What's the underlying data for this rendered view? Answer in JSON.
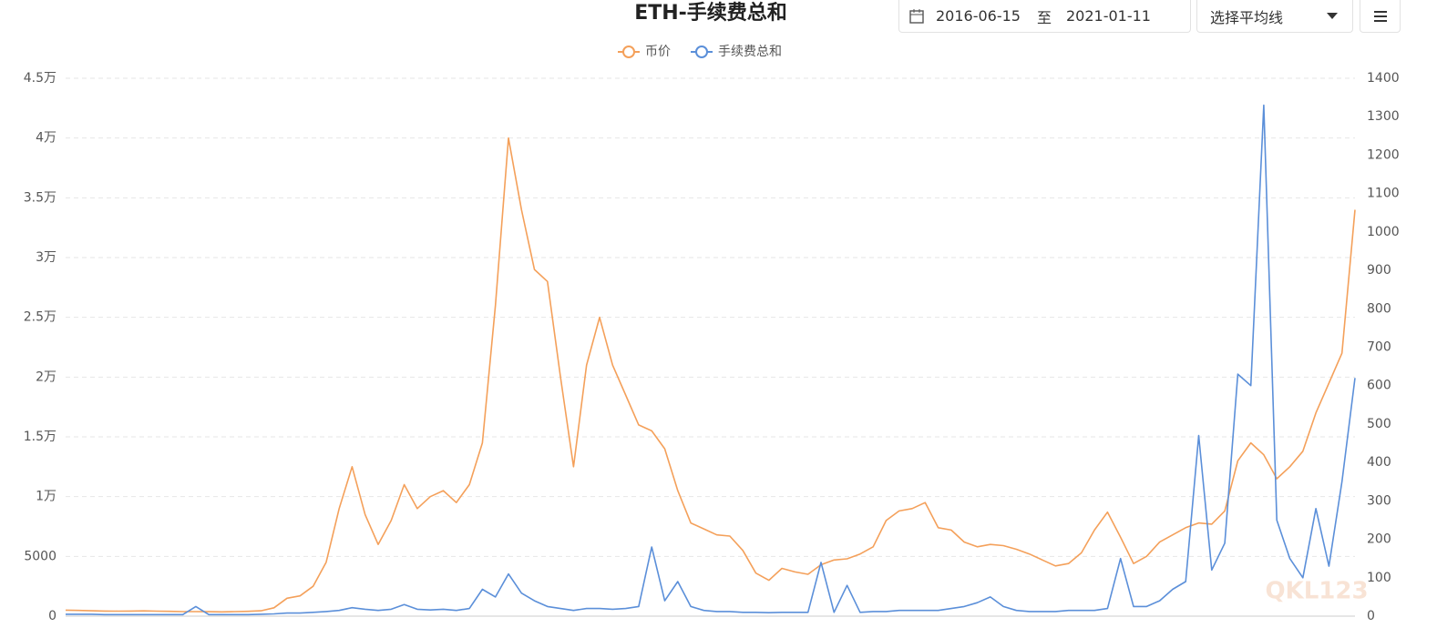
{
  "chart_data": {
    "type": "line",
    "title": "ETH-手续费总和",
    "controls": {
      "start": "2016-06-15",
      "separator": "至",
      "end": "2021-01-11",
      "ma_select": "选择平均线"
    },
    "watermark": "QKL123",
    "categories": [
      null,
      null,
      null,
      null,
      null,
      null,
      null,
      null,
      null,
      null,
      null,
      null,
      null,
      null,
      null,
      null,
      null,
      null,
      null,
      null,
      null,
      null,
      null,
      null,
      null,
      null,
      null,
      null,
      null,
      null,
      null,
      null,
      null,
      null,
      null,
      null,
      null,
      null,
      null,
      null,
      null,
      null,
      null,
      null,
      null,
      null,
      null,
      null,
      null,
      null,
      null,
      null,
      null,
      null,
      null,
      null,
      null,
      null,
      null,
      null,
      null,
      null,
      null,
      null,
      null,
      null,
      null,
      null,
      null,
      null,
      null,
      null,
      null,
      null,
      null,
      null,
      null,
      null,
      null,
      null,
      null,
      null,
      null,
      null,
      null,
      null,
      null,
      null,
      null,
      null,
      null,
      null,
      null,
      null,
      null,
      null,
      null,
      null,
      null,
      null
    ],
    "series": [
      {
        "name": "币价",
        "color": "#f4a05a",
        "values": [
          500,
          480,
          450,
          430,
          420,
          430,
          440,
          420,
          400,
          380,
          380,
          370,
          360,
          380,
          400,
          450,
          700,
          1500,
          1700,
          2500,
          4500,
          9000,
          12500,
          8500,
          6000,
          8000,
          11000,
          9000,
          10000,
          10500,
          9500,
          11000,
          14500,
          26000,
          40000,
          34000,
          29000,
          28000,
          20000,
          12500,
          21000,
          25000,
          21000,
          18500,
          16000,
          15500,
          14000,
          10500,
          7800,
          7300,
          6800,
          6700,
          5500,
          3600,
          3000,
          4000,
          3700,
          3500,
          4300,
          4700,
          4800,
          5200,
          5800,
          8000,
          8800,
          9000,
          9500,
          7400,
          7200,
          6200,
          5800,
          6000,
          5900,
          5600,
          5200,
          4700,
          4200,
          4400,
          5300,
          7200,
          8700,
          6600,
          4400,
          5000,
          6200,
          6800,
          7400,
          7800,
          7700,
          8800,
          13000,
          14500,
          13500,
          11500,
          12500,
          13800,
          17000,
          19500,
          22000,
          34000
        ]
      },
      {
        "name": "手续费总和",
        "color": "#5b8fd9",
        "axis": "y2",
        "values": [
          5,
          5,
          5,
          4,
          4,
          4,
          4,
          4,
          4,
          4,
          25,
          4,
          4,
          4,
          4,
          5,
          6,
          8,
          8,
          10,
          12,
          15,
          22,
          18,
          15,
          18,
          30,
          18,
          16,
          18,
          15,
          20,
          70,
          50,
          110,
          60,
          40,
          25,
          20,
          15,
          20,
          20,
          18,
          20,
          25,
          180,
          40,
          90,
          25,
          15,
          12,
          12,
          10,
          10,
          9,
          10,
          10,
          10,
          140,
          10,
          80,
          10,
          12,
          12,
          15,
          15,
          15,
          15,
          20,
          25,
          35,
          50,
          25,
          15,
          12,
          12,
          12,
          15,
          15,
          15,
          20,
          150,
          25,
          25,
          40,
          70,
          90,
          470,
          120,
          190,
          630,
          600,
          1330,
          250,
          150,
          100,
          280,
          130,
          350,
          620
        ]
      }
    ],
    "ylim": [
      0,
      45000
    ],
    "yticks": [
      0,
      5000,
      {
        "value": 10000,
        "label": "1万"
      },
      {
        "value": 15000,
        "label": "1.5万"
      },
      {
        "value": 20000,
        "label": "2万"
      },
      {
        "value": 25000,
        "label": "2.5万"
      },
      {
        "value": 30000,
        "label": "3万"
      },
      {
        "value": 35000,
        "label": "3.5万"
      },
      {
        "value": 40000,
        "label": "4万"
      },
      {
        "value": 45000,
        "label": "4.5万"
      }
    ],
    "y2lim": [
      0,
      1400
    ],
    "y2ticks": [
      0,
      100,
      200,
      300,
      400,
      500,
      600,
      700,
      800,
      900,
      1000,
      1100,
      1200,
      1300,
      1400
    ],
    "grid": true
  }
}
